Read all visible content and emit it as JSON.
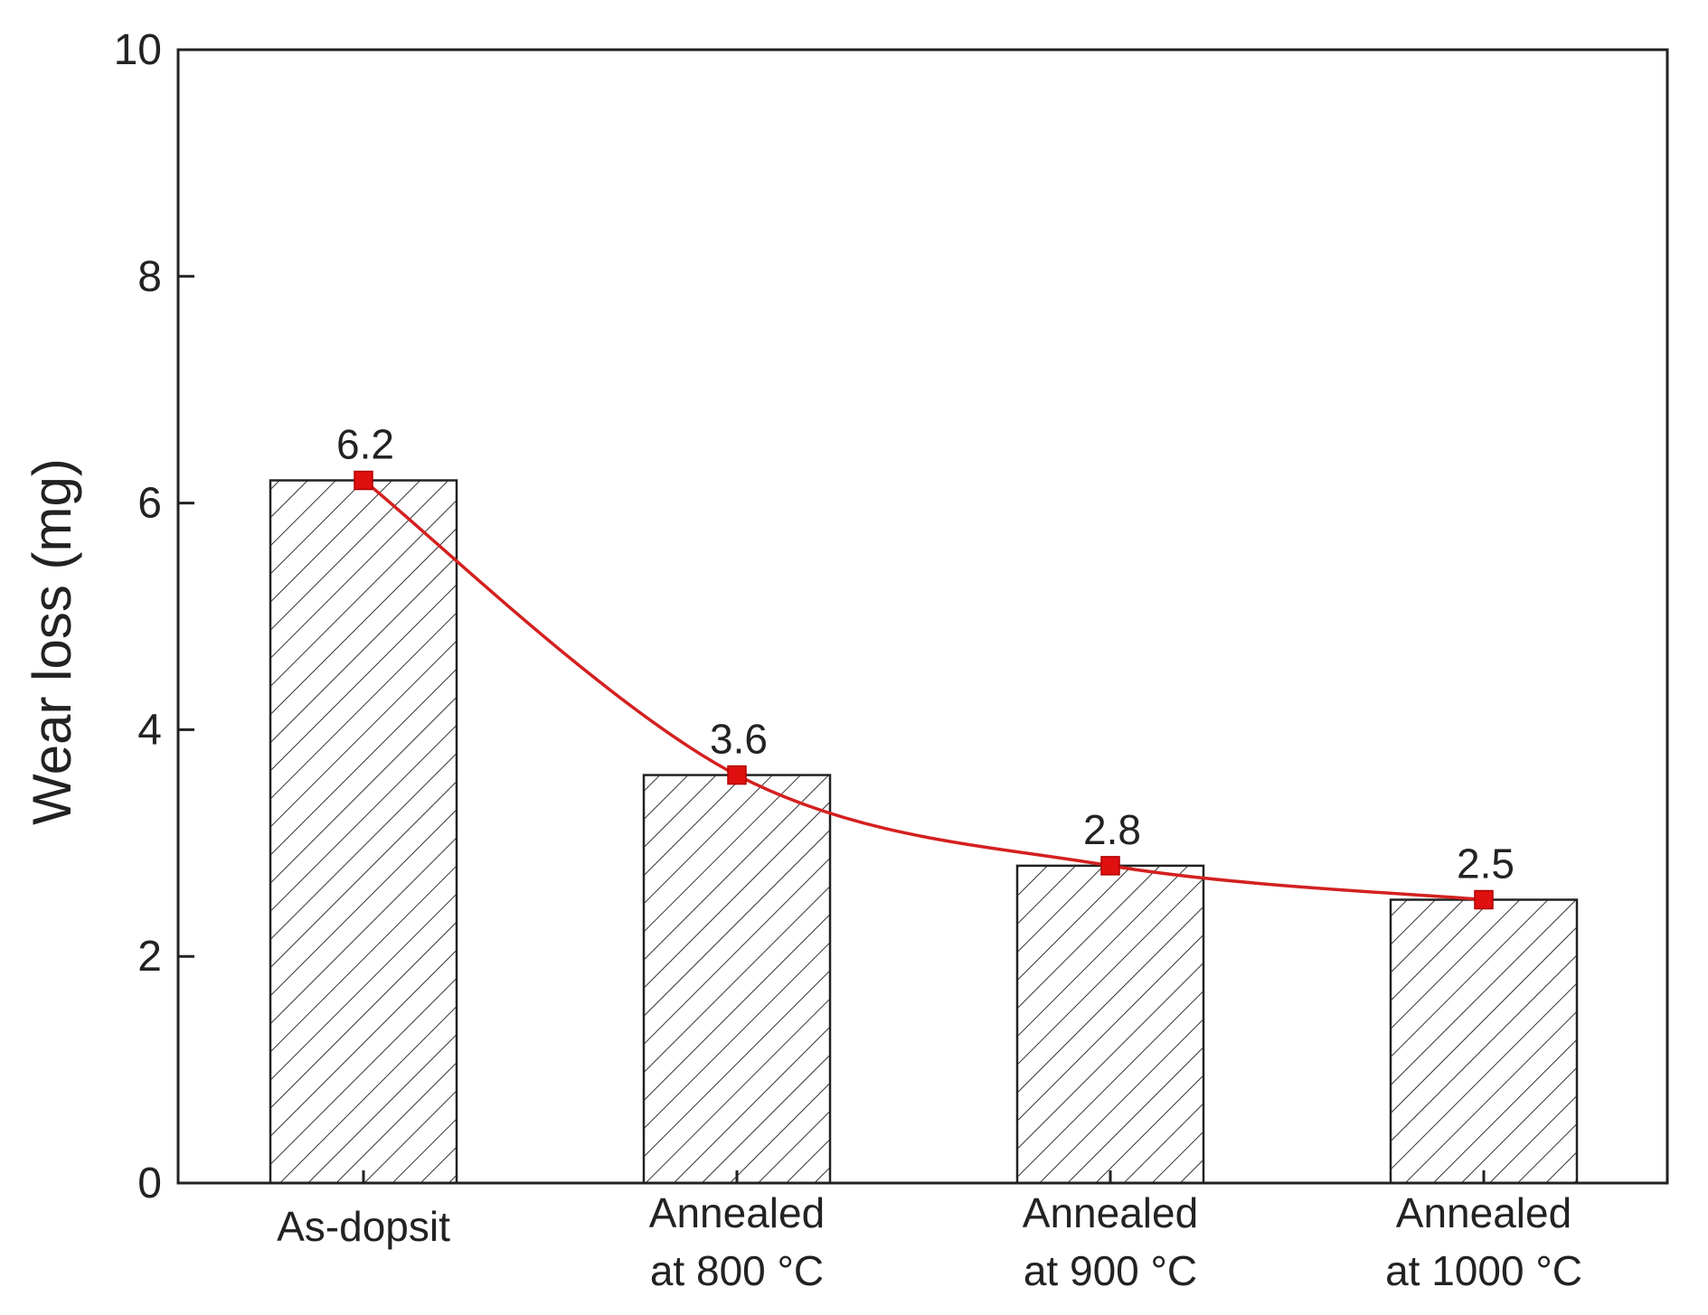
{
  "chart_data": {
    "type": "bar",
    "categories": [
      [
        "As-dopsit"
      ],
      [
        "Annealed",
        "at 800 °C"
      ],
      [
        "Annealed",
        "at 900 °C"
      ],
      [
        "Annealed",
        "at 1000 °C"
      ]
    ],
    "values": [
      6.2,
      3.6,
      2.8,
      2.5
    ],
    "data_labels": [
      "6.2",
      "3.6",
      "2.8",
      "2.5"
    ],
    "ylabel": "Wear loss (mg)",
    "xlabel": "",
    "ylim": [
      0,
      10
    ],
    "yticks": [
      0,
      2,
      4,
      6,
      8,
      10
    ],
    "bar_pattern": "diagonal-hatch",
    "overlay": {
      "type": "line",
      "smooth": true,
      "marker": "square"
    },
    "colors": {
      "line": "#d42020",
      "marker": "#e01010",
      "bar_stroke": "#222222",
      "axis": "#222222"
    }
  }
}
